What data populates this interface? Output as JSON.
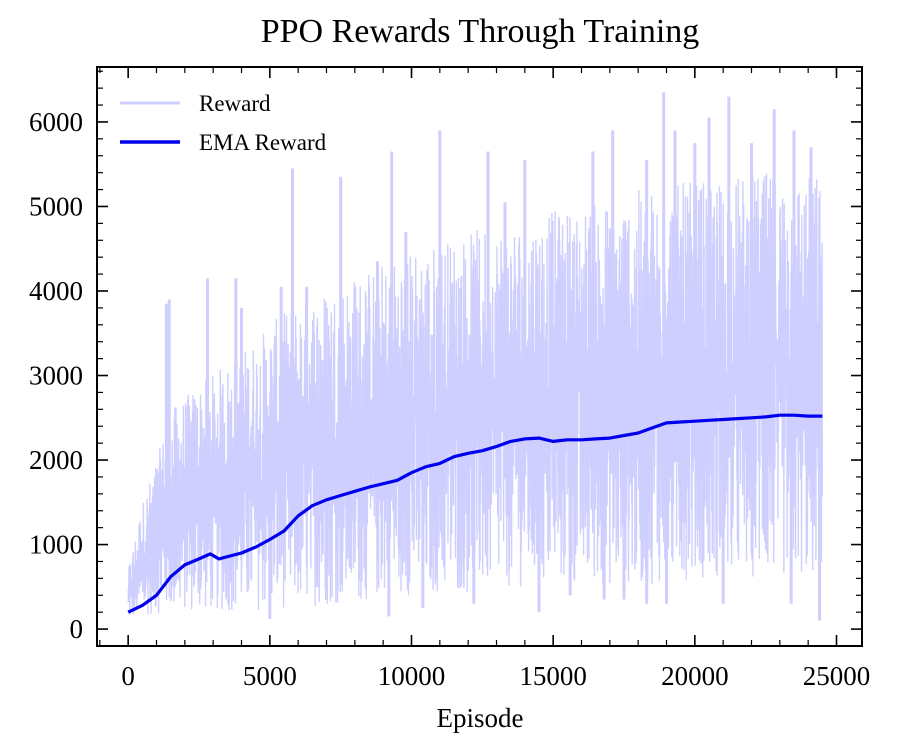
{
  "chart_data": {
    "type": "line",
    "title": "PPO Rewards Through Training",
    "xlabel": "Episode",
    "ylabel": "",
    "xlim": [
      -1100,
      25900
    ],
    "ylim": [
      -200,
      6650
    ],
    "xticks": [
      0,
      5000,
      10000,
      15000,
      20000,
      25000
    ],
    "xtick_labels": [
      "0",
      "5000",
      "10000",
      "15000",
      "20000",
      "25000"
    ],
    "yticks": [
      0,
      1000,
      2000,
      3000,
      4000,
      5000,
      6000
    ],
    "ytick_labels": [
      "0",
      "1000",
      "2000",
      "3000",
      "4000",
      "5000",
      "6000"
    ],
    "grid": false,
    "legend": {
      "placement": "top-left"
    },
    "series": [
      {
        "name": "Reward",
        "color": "#cfcfff",
        "style": "noisy-band",
        "x_range": [
          0,
          24500
        ],
        "n_points": 24500,
        "envelope": [
          {
            "x": 0,
            "low": 100,
            "high": 700
          },
          {
            "x": 500,
            "low": 150,
            "high": 1500
          },
          {
            "x": 1000,
            "low": 180,
            "high": 2000
          },
          {
            "x": 1500,
            "low": 200,
            "high": 2600
          },
          {
            "x": 2500,
            "low": 200,
            "high": 2900
          },
          {
            "x": 4000,
            "low": 200,
            "high": 3300
          },
          {
            "x": 6000,
            "low": 250,
            "high": 3900
          },
          {
            "x": 8000,
            "low": 300,
            "high": 4200
          },
          {
            "x": 10000,
            "low": 400,
            "high": 4500
          },
          {
            "x": 12000,
            "low": 400,
            "high": 4700
          },
          {
            "x": 14000,
            "low": 500,
            "high": 4900
          },
          {
            "x": 16000,
            "low": 500,
            "high": 5000
          },
          {
            "x": 18000,
            "low": 500,
            "high": 5200
          },
          {
            "x": 20000,
            "low": 600,
            "high": 5300
          },
          {
            "x": 22000,
            "low": 600,
            "high": 5400
          },
          {
            "x": 24500,
            "low": 600,
            "high": 5400
          }
        ],
        "spikes": [
          {
            "x": 1350,
            "y": 3850
          },
          {
            "x": 1450,
            "y": 3900
          },
          {
            "x": 2800,
            "y": 4150
          },
          {
            "x": 3800,
            "y": 4150
          },
          {
            "x": 4000,
            "y": 3800
          },
          {
            "x": 5400,
            "y": 4050
          },
          {
            "x": 5800,
            "y": 5450
          },
          {
            "x": 6300,
            "y": 4050
          },
          {
            "x": 7500,
            "y": 5350
          },
          {
            "x": 8000,
            "y": 4050
          },
          {
            "x": 8800,
            "y": 4350
          },
          {
            "x": 9300,
            "y": 5650
          },
          {
            "x": 9800,
            "y": 4700
          },
          {
            "x": 11000,
            "y": 5900
          },
          {
            "x": 12700,
            "y": 5650
          },
          {
            "x": 13300,
            "y": 5050
          },
          {
            "x": 14000,
            "y": 5550
          },
          {
            "x": 15200,
            "y": 4600
          },
          {
            "x": 16400,
            "y": 5650
          },
          {
            "x": 17100,
            "y": 5900
          },
          {
            "x": 18300,
            "y": 5550
          },
          {
            "x": 18900,
            "y": 6350
          },
          {
            "x": 19300,
            "y": 5900
          },
          {
            "x": 20000,
            "y": 5750
          },
          {
            "x": 20500,
            "y": 6050
          },
          {
            "x": 21200,
            "y": 6300
          },
          {
            "x": 22000,
            "y": 5750
          },
          {
            "x": 22800,
            "y": 6150
          },
          {
            "x": 23500,
            "y": 5900
          },
          {
            "x": 24100,
            "y": 5700
          }
        ],
        "dips": [
          {
            "x": 5000,
            "y": 120
          },
          {
            "x": 9200,
            "y": 150
          },
          {
            "x": 10400,
            "y": 250
          },
          {
            "x": 12200,
            "y": 300
          },
          {
            "x": 14500,
            "y": 200
          },
          {
            "x": 15600,
            "y": 400
          },
          {
            "x": 16800,
            "y": 350
          },
          {
            "x": 17500,
            "y": 350
          },
          {
            "x": 18300,
            "y": 300
          },
          {
            "x": 19000,
            "y": 300
          },
          {
            "x": 21000,
            "y": 300
          },
          {
            "x": 23400,
            "y": 300
          },
          {
            "x": 24400,
            "y": 100
          }
        ]
      },
      {
        "name": "EMA Reward",
        "color": "#0000ee",
        "style": "line",
        "x": [
          0,
          500,
          1000,
          1500,
          2000,
          2500,
          2900,
          3200,
          4000,
          4500,
          5000,
          5500,
          6000,
          6500,
          7000,
          7500,
          8000,
          8500,
          9000,
          9500,
          10000,
          10500,
          11000,
          11500,
          12000,
          12500,
          13000,
          13500,
          14000,
          14500,
          15000,
          15500,
          16000,
          16500,
          17000,
          17500,
          18000,
          18500,
          19000,
          19500,
          20000,
          20500,
          21000,
          21500,
          22000,
          22500,
          23000,
          23500,
          24000,
          24500
        ],
        "y": [
          200,
          280,
          400,
          620,
          760,
          830,
          890,
          830,
          900,
          970,
          1060,
          1160,
          1340,
          1460,
          1530,
          1580,
          1630,
          1680,
          1720,
          1760,
          1850,
          1920,
          1960,
          2040,
          2080,
          2110,
          2160,
          2220,
          2250,
          2260,
          2220,
          2240,
          2240,
          2250,
          2260,
          2290,
          2320,
          2380,
          2440,
          2450,
          2460,
          2470,
          2480,
          2490,
          2500,
          2510,
          2530,
          2530,
          2520,
          2520
        ]
      }
    ]
  }
}
